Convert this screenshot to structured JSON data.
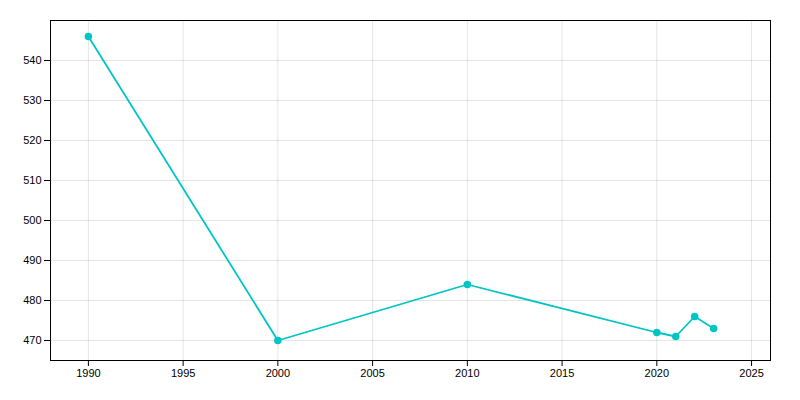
{
  "chart_data": {
    "type": "line",
    "x": [
      1990,
      2000,
      2010,
      2020,
      2021,
      2022,
      2023
    ],
    "values": [
      546,
      470,
      484,
      472,
      471,
      476,
      473
    ],
    "color": "#00C5C5",
    "marker": "circle",
    "xlim": [
      1988,
      2026
    ],
    "ylim": [
      465,
      550
    ],
    "xticks": [
      1990,
      1995,
      2000,
      2005,
      2010,
      2015,
      2020,
      2025
    ],
    "yticks": [
      470,
      480,
      490,
      500,
      510,
      520,
      530,
      540
    ],
    "grid": true
  }
}
